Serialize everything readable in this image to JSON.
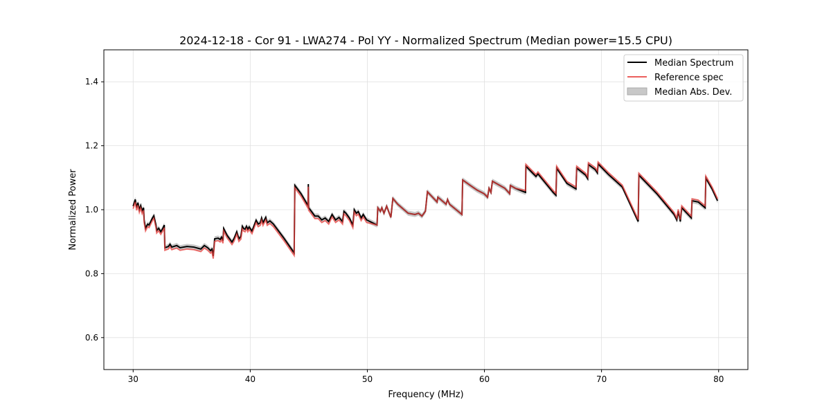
{
  "chart_data": {
    "type": "line",
    "title": "2024-12-18 - Cor 91 - LWA274 - Pol YY - Normalized Spectrum (Median power=15.5 CPU)",
    "xlabel": "Frequency (MHz)",
    "ylabel": "Normalized Power",
    "xlim": [
      27.5,
      82.5
    ],
    "ylim": [
      0.5,
      1.5
    ],
    "xticks": [
      30,
      40,
      50,
      60,
      70,
      80
    ],
    "xtick_labels": [
      "30",
      "40",
      "50",
      "60",
      "70",
      "80"
    ],
    "yticks": [
      0.6,
      0.8,
      1.0,
      1.2,
      1.4
    ],
    "ytick_labels": [
      "0.6",
      "0.8",
      "1.0",
      "1.2",
      "1.4"
    ],
    "grid": true,
    "legend_position": "top-right",
    "legend": [
      "Median Spectrum",
      "Reference spec",
      "Median Abs. Dev."
    ],
    "colors": {
      "median": "#000000",
      "reference": "#e8423f",
      "mad": "#b0b0b0"
    },
    "mad_halfwidth": 0.008,
    "reference_offsets_from_median": [
      [
        27.5,
        50,
        -0.008
      ],
      [
        50,
        63,
        0.0
      ],
      [
        63,
        82.5,
        0.006
      ]
    ],
    "median_series": [
      [
        30.0,
        1.011
      ],
      [
        30.18,
        1.032
      ],
      [
        30.3,
        1.006
      ],
      [
        30.41,
        1.022
      ],
      [
        30.53,
        1.0
      ],
      [
        30.65,
        1.013
      ],
      [
        30.77,
        0.996
      ],
      [
        30.89,
        1.006
      ],
      [
        30.94,
        0.968
      ],
      [
        31.06,
        0.942
      ],
      [
        31.24,
        0.955
      ],
      [
        31.36,
        0.952
      ],
      [
        31.65,
        0.974
      ],
      [
        31.77,
        0.981
      ],
      [
        31.95,
        0.952
      ],
      [
        32.01,
        0.935
      ],
      [
        32.18,
        0.942
      ],
      [
        32.36,
        0.931
      ],
      [
        32.54,
        0.942
      ],
      [
        32.66,
        0.952
      ],
      [
        32.71,
        0.881
      ],
      [
        33.01,
        0.885
      ],
      [
        33.15,
        0.892
      ],
      [
        33.3,
        0.883
      ],
      [
        33.72,
        0.888
      ],
      [
        34.01,
        0.881
      ],
      [
        34.6,
        0.885
      ],
      [
        35.19,
        0.883
      ],
      [
        35.78,
        0.877
      ],
      [
        36.08,
        0.888
      ],
      [
        36.37,
        0.881
      ],
      [
        36.61,
        0.872
      ],
      [
        36.73,
        0.877
      ],
      [
        36.84,
        0.855
      ],
      [
        36.96,
        0.909
      ],
      [
        37.26,
        0.911
      ],
      [
        37.43,
        0.907
      ],
      [
        37.55,
        0.914
      ],
      [
        37.67,
        0.903
      ],
      [
        37.73,
        0.941
      ],
      [
        38.02,
        0.92
      ],
      [
        38.44,
        0.899
      ],
      [
        38.61,
        0.909
      ],
      [
        38.73,
        0.92
      ],
      [
        38.85,
        0.931
      ],
      [
        39.03,
        0.909
      ],
      [
        39.2,
        0.916
      ],
      [
        39.32,
        0.948
      ],
      [
        39.44,
        0.941
      ],
      [
        39.56,
        0.939
      ],
      [
        39.68,
        0.948
      ],
      [
        39.79,
        0.939
      ],
      [
        39.91,
        0.946
      ],
      [
        40.15,
        0.933
      ],
      [
        40.5,
        0.967
      ],
      [
        40.68,
        0.955
      ],
      [
        40.86,
        0.959
      ],
      [
        40.97,
        0.974
      ],
      [
        41.09,
        0.959
      ],
      [
        41.33,
        0.976
      ],
      [
        41.45,
        0.959
      ],
      [
        41.68,
        0.965
      ],
      [
        41.98,
        0.955
      ],
      [
        42.86,
        0.912
      ],
      [
        43.75,
        0.865
      ],
      [
        43.81,
        1.076
      ],
      [
        44.34,
        1.05
      ],
      [
        44.93,
        1.013
      ],
      [
        44.96,
        1.08
      ],
      [
        44.99,
        1.006
      ],
      [
        45.22,
        0.995
      ],
      [
        45.52,
        0.98
      ],
      [
        45.81,
        0.98
      ],
      [
        46.11,
        0.968
      ],
      [
        46.4,
        0.974
      ],
      [
        46.7,
        0.963
      ],
      [
        46.99,
        0.985
      ],
      [
        47.29,
        0.968
      ],
      [
        47.58,
        0.976
      ],
      [
        47.88,
        0.963
      ],
      [
        48.0,
        0.995
      ],
      [
        48.17,
        0.989
      ],
      [
        48.47,
        0.974
      ],
      [
        48.76,
        0.952
      ],
      [
        48.88,
        1.0
      ],
      [
        49.06,
        0.989
      ],
      [
        49.23,
        0.994
      ],
      [
        49.47,
        0.974
      ],
      [
        49.65,
        0.985
      ],
      [
        49.94,
        0.968
      ],
      [
        50.83,
        0.952
      ],
      [
        50.89,
        1.006
      ],
      [
        51.12,
        0.995
      ],
      [
        51.24,
        1.006
      ],
      [
        51.42,
        0.989
      ],
      [
        51.65,
        1.011
      ],
      [
        52.01,
        0.976
      ],
      [
        52.18,
        1.035
      ],
      [
        52.6,
        1.017
      ],
      [
        53.48,
        0.989
      ],
      [
        54.07,
        0.985
      ],
      [
        54.37,
        0.989
      ],
      [
        54.66,
        0.98
      ],
      [
        54.96,
        0.995
      ],
      [
        55.13,
        1.056
      ],
      [
        55.96,
        1.024
      ],
      [
        56.02,
        1.039
      ],
      [
        56.26,
        1.032
      ],
      [
        56.73,
        1.017
      ],
      [
        56.85,
        1.032
      ],
      [
        57.02,
        1.017
      ],
      [
        58.08,
        0.985
      ],
      [
        58.14,
        1.093
      ],
      [
        58.79,
        1.076
      ],
      [
        59.38,
        1.061
      ],
      [
        59.97,
        1.05
      ],
      [
        60.27,
        1.039
      ],
      [
        60.39,
        1.067
      ],
      [
        60.56,
        1.054
      ],
      [
        60.68,
        1.089
      ],
      [
        61.74,
        1.067
      ],
      [
        62.16,
        1.05
      ],
      [
        62.21,
        1.076
      ],
      [
        62.63,
        1.067
      ],
      [
        63.51,
        1.054
      ],
      [
        63.54,
        1.136
      ],
      [
        64.1,
        1.115
      ],
      [
        64.4,
        1.104
      ],
      [
        64.57,
        1.112
      ],
      [
        65.87,
        1.054
      ],
      [
        66.11,
        1.045
      ],
      [
        66.17,
        1.13
      ],
      [
        67.05,
        1.082
      ],
      [
        67.82,
        1.065
      ],
      [
        67.88,
        1.13
      ],
      [
        68.64,
        1.108
      ],
      [
        68.82,
        1.097
      ],
      [
        68.88,
        1.141
      ],
      [
        69.47,
        1.125
      ],
      [
        69.65,
        1.115
      ],
      [
        69.71,
        1.143
      ],
      [
        70.59,
        1.11
      ],
      [
        71.77,
        1.071
      ],
      [
        73.13,
        0.963
      ],
      [
        73.19,
        1.108
      ],
      [
        74.72,
        1.05
      ],
      [
        76.2,
        0.985
      ],
      [
        76.43,
        0.968
      ],
      [
        76.55,
        0.995
      ],
      [
        76.73,
        0.963
      ],
      [
        76.85,
        1.006
      ],
      [
        77.67,
        0.974
      ],
      [
        77.73,
        1.028
      ],
      [
        78.26,
        1.024
      ],
      [
        78.85,
        1.006
      ],
      [
        78.91,
        1.099
      ],
      [
        79.44,
        1.065
      ],
      [
        79.91,
        1.028
      ]
    ]
  }
}
